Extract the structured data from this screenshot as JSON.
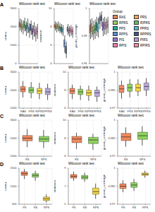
{
  "chart_data": [
    {
      "type": "box",
      "panel": "A",
      "title": "Wilcoxon rank test",
      "y_label": "chao1",
      "tick_labels": "y",
      "grid": true,
      "categories": [
        "RAS",
        "PRS",
        "RPRS",
        "RIPRS",
        "PPS",
        "PPRS",
        "RPPS",
        "RPPRS",
        "PIS",
        "PIRS",
        "RPIS",
        "RPIRS"
      ],
      "colors": [
        "#e8825a",
        "#f2a65a",
        "#9ccc65",
        "#66bb6a",
        "#26a69a",
        "#4dbbd5",
        "#5c8bd6",
        "#3c5488",
        "#9575cd",
        "#b39ddb",
        "#ec7fb0",
        "#f48fb1"
      ],
      "boxes": [
        {
          "min": 1800,
          "q1": 2000,
          "median": 2100,
          "q3": 2250,
          "max": 2450
        },
        {
          "min": 1700,
          "q1": 1950,
          "median": 2050,
          "q3": 2200,
          "max": 2400
        },
        {
          "min": 1600,
          "q1": 1850,
          "median": 2000,
          "q3": 2150,
          "max": 2350
        },
        {
          "min": 1750,
          "q1": 1950,
          "median": 2100,
          "q3": 2300,
          "max": 2500
        },
        {
          "min": 1500,
          "q1": 1800,
          "median": 1950,
          "q3": 2100,
          "max": 2300
        },
        {
          "min": 1650,
          "q1": 1900,
          "median": 2050,
          "q3": 2200,
          "max": 2450
        },
        {
          "min": 1400,
          "q1": 1700,
          "median": 1850,
          "q3": 2000,
          "max": 2200
        },
        {
          "min": 1550,
          "q1": 1800,
          "median": 1950,
          "q3": 2150,
          "max": 2350
        },
        {
          "min": 1300,
          "q1": 1600,
          "median": 1750,
          "q3": 1900,
          "max": 2100
        },
        {
          "min": 1450,
          "q1": 1700,
          "median": 1850,
          "q3": 2050,
          "max": 2250
        },
        {
          "min": 1200,
          "q1": 1500,
          "median": 1650,
          "q3": 1850,
          "max": 2050
        },
        {
          "min": 1350,
          "q1": 1600,
          "median": 1750,
          "q3": 1950,
          "max": 2150
        }
      ],
      "ylim": [
        0,
        3000
      ],
      "yticks": [
        0,
        1000,
        2000,
        3000
      ]
    },
    {
      "type": "box",
      "title": "Wilcoxon rank test",
      "y_label": "shannon",
      "tick_labels": "y",
      "grid": true,
      "categories": [
        "RAS",
        "PRS",
        "RPRS",
        "RIPRS",
        "PPS",
        "PPRS",
        "RPPS",
        "RPPRS",
        "PIS",
        "PIRS",
        "RPIS",
        "RPIRS"
      ],
      "colors": [
        "#e8825a",
        "#f2a65a",
        "#9ccc65",
        "#66bb6a",
        "#26a69a",
        "#4dbbd5",
        "#5c8bd6",
        "#3c5488",
        "#9575cd",
        "#b39ddb",
        "#ec7fb0",
        "#f48fb1"
      ],
      "boxes": [
        {
          "min": 7.6,
          "q1": 7.9,
          "median": 8.1,
          "q3": 8.3,
          "max": 8.6
        },
        {
          "min": 7.4,
          "q1": 7.8,
          "median": 8.0,
          "q3": 8.2,
          "max": 8.5
        },
        {
          "min": 7.5,
          "q1": 7.8,
          "median": 8.0,
          "q3": 8.3,
          "max": 8.6
        },
        {
          "min": 7.3,
          "q1": 7.6,
          "median": 7.9,
          "q3": 8.1,
          "max": 8.4
        },
        {
          "min": 7.2,
          "q1": 7.5,
          "median": 7.8,
          "q3": 8.0,
          "max": 8.3
        },
        {
          "min": 7.0,
          "q1": 7.4,
          "median": 7.7,
          "q3": 7.9,
          "max": 8.2
        },
        {
          "min": 5.2,
          "q1": 5.8,
          "median": 6.2,
          "q3": 6.6,
          "max": 7.1
        },
        {
          "min": 4.6,
          "q1": 5.1,
          "median": 5.5,
          "q3": 5.9,
          "max": 6.4
        },
        {
          "min": 7.1,
          "q1": 7.5,
          "median": 7.7,
          "q3": 8.0,
          "max": 8.3
        },
        {
          "min": 6.9,
          "q1": 7.3,
          "median": 7.6,
          "q3": 7.8,
          "max": 8.1
        },
        {
          "min": 7.0,
          "q1": 7.4,
          "median": 7.6,
          "q3": 7.9,
          "max": 8.2
        },
        {
          "min": 6.8,
          "q1": 7.2,
          "median": 7.5,
          "q3": 7.7,
          "max": 8.0
        }
      ],
      "ylim": [
        4,
        10
      ],
      "yticks": [
        4,
        6,
        8,
        10
      ]
    },
    {
      "type": "box",
      "title": "Wilcoxon rank test",
      "y_label": "goods_coverage",
      "tick_labels": "y",
      "grid": true,
      "legend": "right",
      "legend_title": "Group",
      "categories": [
        "RAS",
        "PRS",
        "RPRS",
        "RIPRS",
        "PPS",
        "PPRS",
        "RPPS",
        "RPPRS",
        "PIS",
        "PIRS",
        "RPIS",
        "RPIRS"
      ],
      "colors": [
        "#e8825a",
        "#f2a65a",
        "#9ccc65",
        "#66bb6a",
        "#26a69a",
        "#4dbbd5",
        "#5c8bd6",
        "#3c5488",
        "#9575cd",
        "#b39ddb",
        "#ec7fb0",
        "#f48fb1"
      ],
      "boxes": [
        {
          "min": 0.978,
          "q1": 0.982,
          "median": 0.985,
          "q3": 0.988,
          "max": 0.992
        },
        {
          "min": 0.979,
          "q1": 0.983,
          "median": 0.986,
          "q3": 0.989,
          "max": 0.993
        },
        {
          "min": 0.977,
          "q1": 0.981,
          "median": 0.984,
          "q3": 0.987,
          "max": 0.991
        },
        {
          "min": 0.978,
          "q1": 0.982,
          "median": 0.985,
          "q3": 0.988,
          "max": 0.992
        },
        {
          "min": 0.98,
          "q1": 0.984,
          "median": 0.987,
          "q3": 0.99,
          "max": 0.994
        },
        {
          "min": 0.979,
          "q1": 0.983,
          "median": 0.986,
          "q3": 0.989,
          "max": 0.993
        },
        {
          "min": 0.985,
          "q1": 0.989,
          "median": 0.992,
          "q3": 0.994,
          "max": 0.997
        },
        {
          "min": 0.987,
          "q1": 0.991,
          "median": 0.993,
          "q3": 0.995,
          "max": 0.998
        },
        {
          "min": 0.98,
          "q1": 0.984,
          "median": 0.987,
          "q3": 0.99,
          "max": 0.993
        },
        {
          "min": 0.981,
          "q1": 0.985,
          "median": 0.988,
          "q3": 0.99,
          "max": 0.994
        },
        {
          "min": 0.981,
          "q1": 0.985,
          "median": 0.987,
          "q3": 0.99,
          "max": 0.993
        },
        {
          "min": 0.982,
          "q1": 0.986,
          "median": 0.988,
          "q3": 0.991,
          "max": 0.994
        }
      ],
      "ylim": [
        0.96,
        1
      ],
      "yticks": [
        0.96,
        0.98,
        1
      ]
    },
    {
      "type": "box",
      "panel": "B",
      "title": "Wilcoxon rank test",
      "y_label": "chao1",
      "grid": true,
      "categories": [
        "RAS",
        "PRS",
        "RIPRS",
        "PPRS"
      ],
      "colors": [
        "#f08a5d",
        "#8dd35f",
        "#f5d547",
        "#b8a9d9"
      ],
      "boxes": [
        {
          "min": 1600,
          "q1": 1900,
          "median": 2050,
          "q3": 2200,
          "max": 2500
        },
        {
          "min": 1550,
          "q1": 1850,
          "median": 2000,
          "q3": 2150,
          "max": 2450
        },
        {
          "min": 1500,
          "q1": 1800,
          "median": 1950,
          "q3": 2100,
          "max": 2400
        },
        {
          "min": 1450,
          "q1": 1750,
          "median": 1900,
          "q3": 2100,
          "max": 2350
        }
      ],
      "ylim": [
        1000,
        3000
      ],
      "yticks": [
        1000,
        2000,
        3000
      ]
    },
    {
      "type": "box",
      "title": "Wilcoxon rank test",
      "y_label": "shannon",
      "grid": true,
      "categories": [
        "RAS",
        "PRS",
        "RIPRS",
        "PPRS"
      ],
      "colors": [
        "#f08a5d",
        "#8dd35f",
        "#f5d547",
        "#b8a9d9"
      ],
      "boxes": [
        {
          "min": 7.0,
          "q1": 7.6,
          "median": 7.9,
          "q3": 8.2,
          "max": 8.6
        },
        {
          "min": 6.9,
          "q1": 7.5,
          "median": 7.8,
          "q3": 8.1,
          "max": 8.5
        },
        {
          "min": 6.8,
          "q1": 7.4,
          "median": 7.7,
          "q3": 8.0,
          "max": 8.5
        },
        {
          "min": 6.7,
          "q1": 7.3,
          "median": 7.7,
          "q3": 8.0,
          "max": 8.4
        }
      ],
      "ylim": [
        6,
        10
      ],
      "yticks": [
        6,
        8,
        10
      ]
    },
    {
      "type": "box",
      "title": "Wilcoxon rank test",
      "y_label": "goods_coverage",
      "grid": true,
      "categories": [
        "RAS",
        "PRS",
        "RIPRS",
        "PPRS"
      ],
      "colors": [
        "#f08a5d",
        "#8dd35f",
        "#f5d547",
        "#b8a9d9"
      ],
      "boxes": [
        {
          "min": 0.978,
          "q1": 0.983,
          "median": 0.986,
          "q3": 0.989,
          "max": 0.993
        },
        {
          "min": 0.979,
          "q1": 0.984,
          "median": 0.987,
          "q3": 0.99,
          "max": 0.994
        },
        {
          "min": 0.98,
          "q1": 0.984,
          "median": 0.987,
          "q3": 0.99,
          "max": 0.994
        },
        {
          "min": 0.98,
          "q1": 0.985,
          "median": 0.988,
          "q3": 0.991,
          "max": 0.995
        }
      ],
      "ylim": [
        0.97,
        1
      ],
      "yticks": [
        0.97,
        0.985,
        1
      ]
    },
    {
      "type": "box",
      "panel": "C",
      "title": "Wilcoxon rank test",
      "y_label": "chao1",
      "grid": true,
      "categories": [
        "RS",
        "RPS"
      ],
      "colors": [
        "#f08a5d",
        "#8dd35f"
      ],
      "boxes": [
        {
          "min": 1500,
          "q1": 1850,
          "median": 2000,
          "q3": 2150,
          "max": 2500
        },
        {
          "min": 1450,
          "q1": 1800,
          "median": 1950,
          "q3": 2100,
          "max": 2450
        }
      ],
      "ylim": [
        1000,
        3000
      ],
      "yticks": [
        1000,
        2000,
        3000
      ]
    },
    {
      "type": "box",
      "title": "Wilcoxon rank test",
      "y_label": "shannon",
      "grid": true,
      "categories": [
        "RS",
        "RPS"
      ],
      "colors": [
        "#f08a5d",
        "#8dd35f"
      ],
      "boxes": [
        {
          "min": 6.8,
          "q1": 7.5,
          "median": 7.9,
          "q3": 8.2,
          "max": 8.6
        },
        {
          "min": 6.7,
          "q1": 7.4,
          "median": 7.8,
          "q3": 8.1,
          "max": 8.5
        }
      ],
      "ylim": [
        6,
        10
      ],
      "yticks": [
        6,
        8,
        10
      ]
    },
    {
      "type": "box",
      "title": "Wilcoxon rank test",
      "y_label": "goods_coverage",
      "grid": true,
      "categories": [
        "RS",
        "RPS"
      ],
      "colors": [
        "#f08a5d",
        "#8dd35f"
      ],
      "boxes": [
        {
          "min": 0.978,
          "q1": 0.983,
          "median": 0.986,
          "q3": 0.989,
          "max": 0.994
        },
        {
          "min": 0.979,
          "q1": 0.984,
          "median": 0.987,
          "q3": 0.99,
          "max": 0.995
        }
      ],
      "ylim": [
        0.97,
        1
      ],
      "yticks": [
        0.97,
        0.985,
        1
      ]
    },
    {
      "type": "box",
      "panel": "D",
      "title": "Wilcoxon rank test",
      "y_label": "chao1",
      "grid": true,
      "categories": [
        "PS",
        "RS",
        "RPS"
      ],
      "colors": [
        "#f08a5d",
        "#8dd35f",
        "#f5d547"
      ],
      "boxes": [
        {
          "min": 1900,
          "q1": 2100,
          "median": 2200,
          "q3": 2300,
          "max": 2450
        },
        {
          "min": 1800,
          "q1": 2000,
          "median": 2100,
          "q3": 2200,
          "max": 2350
        },
        {
          "min": 600,
          "q1": 700,
          "median": 800,
          "q3": 900,
          "max": 1050
        }
      ],
      "ylim": [
        500,
        2500
      ],
      "yticks": [
        500,
        1500,
        2500
      ]
    },
    {
      "type": "box",
      "title": "Wilcoxon rank test",
      "y_label": "shannon",
      "grid": true,
      "categories": [
        "PS",
        "RS",
        "RPS"
      ],
      "colors": [
        "#f08a5d",
        "#8dd35f",
        "#f5d547"
      ],
      "boxes": [
        {
          "min": 7.6,
          "q1": 7.9,
          "median": 8.1,
          "q3": 8.3,
          "max": 8.6
        },
        {
          "min": 7.5,
          "q1": 7.8,
          "median": 8.0,
          "q3": 8.2,
          "max": 8.5
        },
        {
          "min": 5.6,
          "q1": 6.1,
          "median": 6.4,
          "q3": 6.8,
          "max": 7.3
        }
      ],
      "ylim": [
        5,
        9
      ],
      "yticks": [
        5,
        7,
        9
      ]
    },
    {
      "type": "box",
      "title": "Wilcoxon rank test",
      "y_label": "goods_coverage",
      "grid": true,
      "categories": [
        "PS",
        "RS",
        "RPS"
      ],
      "colors": [
        "#f08a5d",
        "#8dd35f",
        "#f5d547"
      ],
      "boxes": [
        {
          "min": 0.98,
          "q1": 0.983,
          "median": 0.985,
          "q3": 0.987,
          "max": 0.99
        },
        {
          "min": 0.981,
          "q1": 0.984,
          "median": 0.986,
          "q3": 0.988,
          "max": 0.991
        },
        {
          "min": 0.992,
          "q1": 0.994,
          "median": 0.995,
          "q3": 0.996,
          "max": 0.998
        }
      ],
      "ylim": [
        0.97,
        1
      ],
      "yticks": [
        0.97,
        0.985,
        1
      ]
    }
  ]
}
